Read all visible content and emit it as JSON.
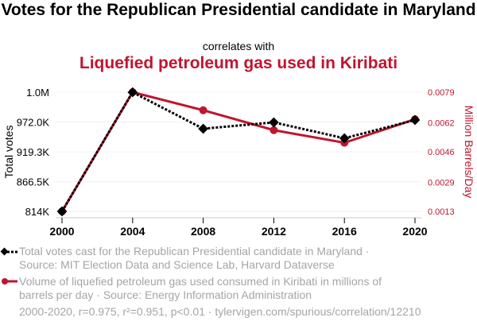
{
  "header": {
    "title": "Votes for the Republican Presidential candidate in Maryland",
    "subtitle": "correlates with",
    "title2": "Liquefied petroleum gas used in Kiribati"
  },
  "colors": {
    "series1": "#000000",
    "series2": "#c0152f",
    "legend_text": "#a5a5a5",
    "grid": "#f0f0f0"
  },
  "legend": [
    {
      "icon": "black-dotted-diamond-line-icon",
      "line1": "Total votes cast for the Republican Presidential candidate in Maryland ·",
      "line2": "Source: MIT Election Data and Science Lab, Harvard Dataverse"
    },
    {
      "icon": "red-solid-circle-line-icon",
      "line1": "Volume of liquefied petroleum gas used consumed in Kiribati in millions of",
      "line2": "barrels per day · Source: Energy Information Administration"
    }
  ],
  "footer": "2000-2020, r=0.975, r²=0.951, p<0.01 · tylervigen.com/spurious/correlation/12210",
  "chart_data": {
    "type": "line",
    "title": "Votes for the Republican Presidential candidate in Maryland correlates with Liquefied petroleum gas used in Kiribati",
    "x": [
      2000,
      2004,
      2008,
      2012,
      2016,
      2020
    ],
    "xticks": [
      "2000",
      "2004",
      "2008",
      "2012",
      "2016",
      "2020"
    ],
    "xlabel": "",
    "grid": true,
    "legend_position": "bottom",
    "left_axis": {
      "label": "Total votes",
      "ylim": [
        814000,
        1024800
      ],
      "ticks": [
        814000,
        866500,
        919300,
        972000,
        1024800
      ],
      "tick_labels": [
        "814K",
        "866.5K",
        "919.3K",
        "972.0K",
        "1.0M"
      ]
    },
    "right_axis": {
      "label": "Million Barrels/Day",
      "ylim": [
        0.0013,
        0.0079
      ],
      "ticks": [
        0.0013,
        0.0029,
        0.0046,
        0.0062,
        0.0079
      ],
      "tick_labels": [
        "0.0013",
        "0.0029",
        "0.0046",
        "0.0062",
        "0.0079"
      ]
    },
    "series": [
      {
        "name": "Total votes cast for the Republican Presidential candidate in Maryland",
        "axis": "left",
        "style": "dotted",
        "marker": "diamond",
        "values": [
          814000,
          1024700,
          960200,
          971400,
          943300,
          975600
        ]
      },
      {
        "name": "Volume of liquefied petroleum gas used consumed in Kiribati",
        "axis": "right",
        "style": "solid",
        "marker": "circle",
        "values": [
          0.0013,
          0.0079,
          0.0069,
          0.0058,
          0.0051,
          0.0064
        ]
      }
    ],
    "annotation": "2000-2020, r=0.975, r²=0.951, p<0.01"
  }
}
